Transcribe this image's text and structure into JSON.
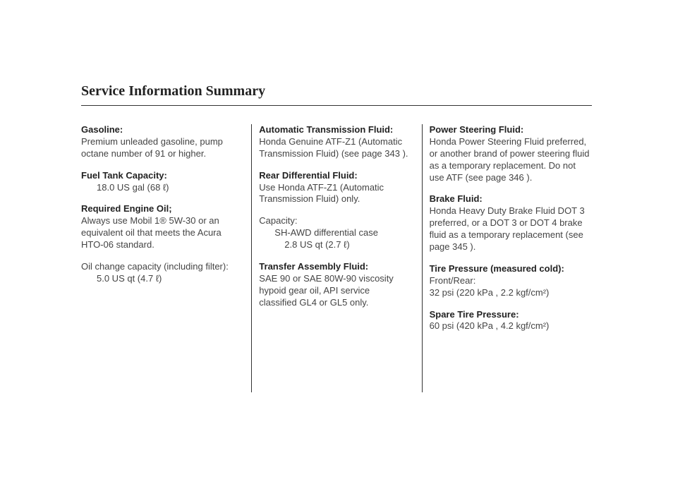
{
  "title": "Service Information Summary",
  "col1": {
    "gasoline_label": "Gasoline:",
    "gasoline_body": "Premium unleaded gasoline, pump octane number of 91 or higher.",
    "fueltank_label": "Fuel Tank Capacity:",
    "fueltank_value": "18.0 US gal (68 ℓ)",
    "oil_label": "Required Engine Oil;",
    "oil_body": "Always use Mobil 1® 5W-30 or an equivalent oil that meets the Acura HTO-06 standard.",
    "oilchange_body": "Oil change capacity (including filter):",
    "oilchange_value": "5.0 US qt (4.7 ℓ)"
  },
  "col2": {
    "atf_label": "Automatic Transmission Fluid:",
    "atf_body": "Honda Genuine ATF-Z1 (Automatic Transmission Fluid) (see page 343 ).",
    "rdf_label": "Rear Differential Fluid:",
    "rdf_body": "Use Honda ATF-Z1 (Automatic Transmission Fluid) only.",
    "cap_label": "Capacity:",
    "cap_line1": "SH-AWD differential case",
    "cap_line2": "2.8 US qt (2.7 ℓ)",
    "taf_label": "Transfer Assembly Fluid:",
    "taf_body": "SAE 90 or SAE 80W-90 viscosity hypoid gear oil, API service classified GL4 or GL5 only."
  },
  "col3": {
    "psf_label": "Power Steering Fluid:",
    "psf_body": "Honda Power Steering Fluid preferred, or another brand of power steering fluid as a temporary replacement. Do not use ATF (see page 346 ).",
    "bf_label": "Brake Fluid:",
    "bf_body": "Honda Heavy Duty Brake Fluid DOT 3 preferred, or a DOT 3 or DOT 4 brake fluid as a temporary replacement (see page 345 ).",
    "tp_label": "Tire Pressure (measured cold):",
    "tp_sub": "Front/Rear:",
    "tp_value": "32 psi (220 kPa , 2.2 kgf/cm²)",
    "spare_label": "Spare Tire Pressure:",
    "spare_value": "60 psi (420 kPa , 4.2 kgf/cm²)"
  }
}
